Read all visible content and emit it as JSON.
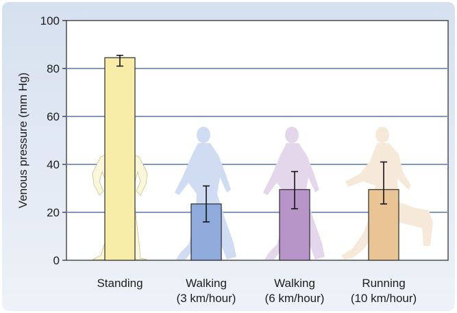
{
  "chart_data": {
    "type": "bar",
    "title": "",
    "ylabel": "Venous pressure (mm Hg)",
    "xlabel": "",
    "ylim": [
      0,
      100
    ],
    "yticks": [
      0,
      20,
      40,
      60,
      80,
      100
    ],
    "grid": true,
    "categories": [
      {
        "line1": "Standing",
        "line2": ""
      },
      {
        "line1": "Walking",
        "line2": "(3 km/hour)"
      },
      {
        "line1": "Walking",
        "line2": "(6 km/hour)"
      },
      {
        "line1": "Running",
        "line2": "(10 km/hour)"
      }
    ],
    "values": [
      84.5,
      23.5,
      29.5,
      29.5
    ],
    "error_low": [
      81,
      16,
      21.5,
      23.5
    ],
    "error_high": [
      85.5,
      31,
      37,
      41
    ],
    "bar_colors": [
      "#f7eda8",
      "#8faadb",
      "#b895c9",
      "#e9c596"
    ],
    "figure_colors": [
      "#fbf7dc",
      "#cfdcf2",
      "#e4d7ec",
      "#f7e9da"
    ],
    "figure_icons": [
      "standing-person",
      "walking-person",
      "walking-person",
      "running-person"
    ]
  }
}
